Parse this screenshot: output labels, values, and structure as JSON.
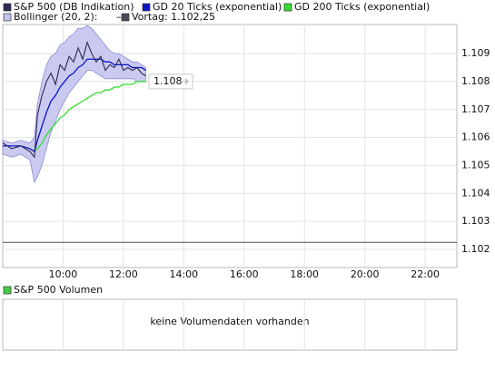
{
  "chart_data": {
    "type": "line",
    "xlim": [
      8.0,
      23.05
    ],
    "xticks": [
      {
        "value": 10,
        "label": "10:00"
      },
      {
        "value": 12,
        "label": "12:00"
      },
      {
        "value": 14,
        "label": "14:00"
      },
      {
        "value": 16,
        "label": "16:00"
      },
      {
        "value": 18,
        "label": "18:00"
      },
      {
        "value": 20,
        "label": "20:00"
      },
      {
        "value": 22,
        "label": "22:00"
      }
    ],
    "ylim": [
      1.10135,
      1.11004
    ],
    "yticks": [
      1.102,
      1.103,
      1.104,
      1.105,
      1.106,
      1.107,
      1.108,
      1.109
    ],
    "grid": true,
    "x": [
      8.0,
      8.3,
      8.6,
      8.9,
      9.05,
      9.15,
      9.3,
      9.45,
      9.6,
      9.75,
      9.9,
      10.05,
      10.2,
      10.35,
      10.5,
      10.65,
      10.8,
      10.95,
      11.1,
      11.25,
      11.4,
      11.55,
      11.7,
      11.85,
      12.0,
      12.15,
      12.3,
      12.45,
      12.6,
      12.74
    ],
    "bollinger": {
      "name": "Bollinger (20, 2):",
      "legend_value": "–",
      "color": "#c4c4f0",
      "upper": [
        1.1059,
        1.1058,
        1.1059,
        1.1058,
        1.106,
        1.1072,
        1.108,
        1.1086,
        1.1089,
        1.109,
        1.1093,
        1.1094,
        1.1096,
        1.1097,
        1.1099,
        1.1099,
        1.11,
        1.1099,
        1.1097,
        1.1095,
        1.1093,
        1.1091,
        1.109,
        1.109,
        1.1089,
        1.1088,
        1.1087,
        1.1087,
        1.1086,
        1.1085
      ],
      "lower": [
        1.1054,
        1.1053,
        1.1054,
        1.1052,
        1.1044,
        1.1046,
        1.105,
        1.1056,
        1.1062,
        1.1066,
        1.107,
        1.1073,
        1.1076,
        1.1078,
        1.108,
        1.1082,
        1.1084,
        1.1084,
        1.1083,
        1.1082,
        1.1081,
        1.1081,
        1.1081,
        1.1081,
        1.1081,
        1.1081,
        1.1081,
        1.108,
        1.108,
        1.108
      ]
    },
    "series": [
      {
        "name": "S&P 500 (DB Indikation)",
        "color": "#2a2a55",
        "values": [
          1.1058,
          1.1056,
          1.1057,
          1.1055,
          1.1053,
          1.1068,
          1.1075,
          1.108,
          1.1083,
          1.1079,
          1.1086,
          1.1084,
          1.1089,
          1.1087,
          1.1092,
          1.1088,
          1.1094,
          1.109,
          1.1087,
          1.1089,
          1.1084,
          1.1086,
          1.1085,
          1.1088,
          1.1084,
          1.1085,
          1.1084,
          1.1085,
          1.1083,
          1.1082
        ]
      },
      {
        "name": "GD 20 Ticks (exponential)",
        "color": "#0a14c8",
        "values": [
          1.1057,
          1.1057,
          1.1057,
          1.1056,
          1.1055,
          1.1059,
          1.1064,
          1.1069,
          1.1073,
          1.1075,
          1.1078,
          1.108,
          1.1082,
          1.1083,
          1.1085,
          1.1086,
          1.1088,
          1.1088,
          1.1088,
          1.1088,
          1.1087,
          1.1087,
          1.1086,
          1.1086,
          1.1086,
          1.1086,
          1.1085,
          1.1085,
          1.1085,
          1.1084
        ]
      },
      {
        "name": "GD 200 Ticks (exponential)",
        "color": "#33dd33",
        "values": [
          null,
          null,
          null,
          null,
          1.1055,
          1.1056,
          1.1058,
          1.1061,
          1.1063,
          1.1065,
          1.1067,
          1.1068,
          1.107,
          1.1071,
          1.1072,
          1.1073,
          1.1074,
          1.1075,
          1.1076,
          1.1076,
          1.1077,
          1.1077,
          1.1078,
          1.1078,
          1.1079,
          1.1079,
          1.1079,
          1.108,
          1.108,
          1.108
        ]
      }
    ],
    "reference_line": {
      "label": "Vortag: 1.102,25",
      "value": 1.10225,
      "color": "#4a4a5a"
    },
    "last_price": 1.108,
    "volume_panel": {
      "legend": "S&P 500 Volumen",
      "color": "#44cc44",
      "message": "keine Volumendaten vorhanden"
    }
  }
}
